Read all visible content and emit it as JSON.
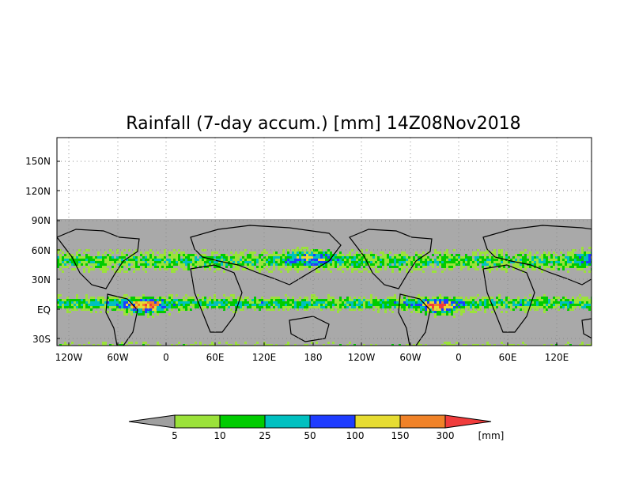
{
  "title": "Rainfall (7-day accum.) [mm] 14Z08Nov2018",
  "y_ticks": [
    "150N",
    "120N",
    "90N",
    "60N",
    "30N",
    "EQ",
    "30S"
  ],
  "x_ticks": [
    "120W",
    "60W",
    "0",
    "60E",
    "120E",
    "180",
    "120W",
    "60W",
    "0",
    "60E",
    "120E"
  ],
  "colorbar": {
    "unit": "[mm]",
    "labels": [
      "5",
      "10",
      "25",
      "50",
      "100",
      "150",
      "300"
    ],
    "colors": [
      "#a0a0a0",
      "#9be23a",
      "#00cc00",
      "#00c0c0",
      "#1e3cff",
      "#e6dc32",
      "#f08228",
      "#f03c3c"
    ]
  },
  "map": {
    "land_color": "#000000",
    "no_rain_color": "#a9a9a9",
    "masked_above": "90N"
  }
}
